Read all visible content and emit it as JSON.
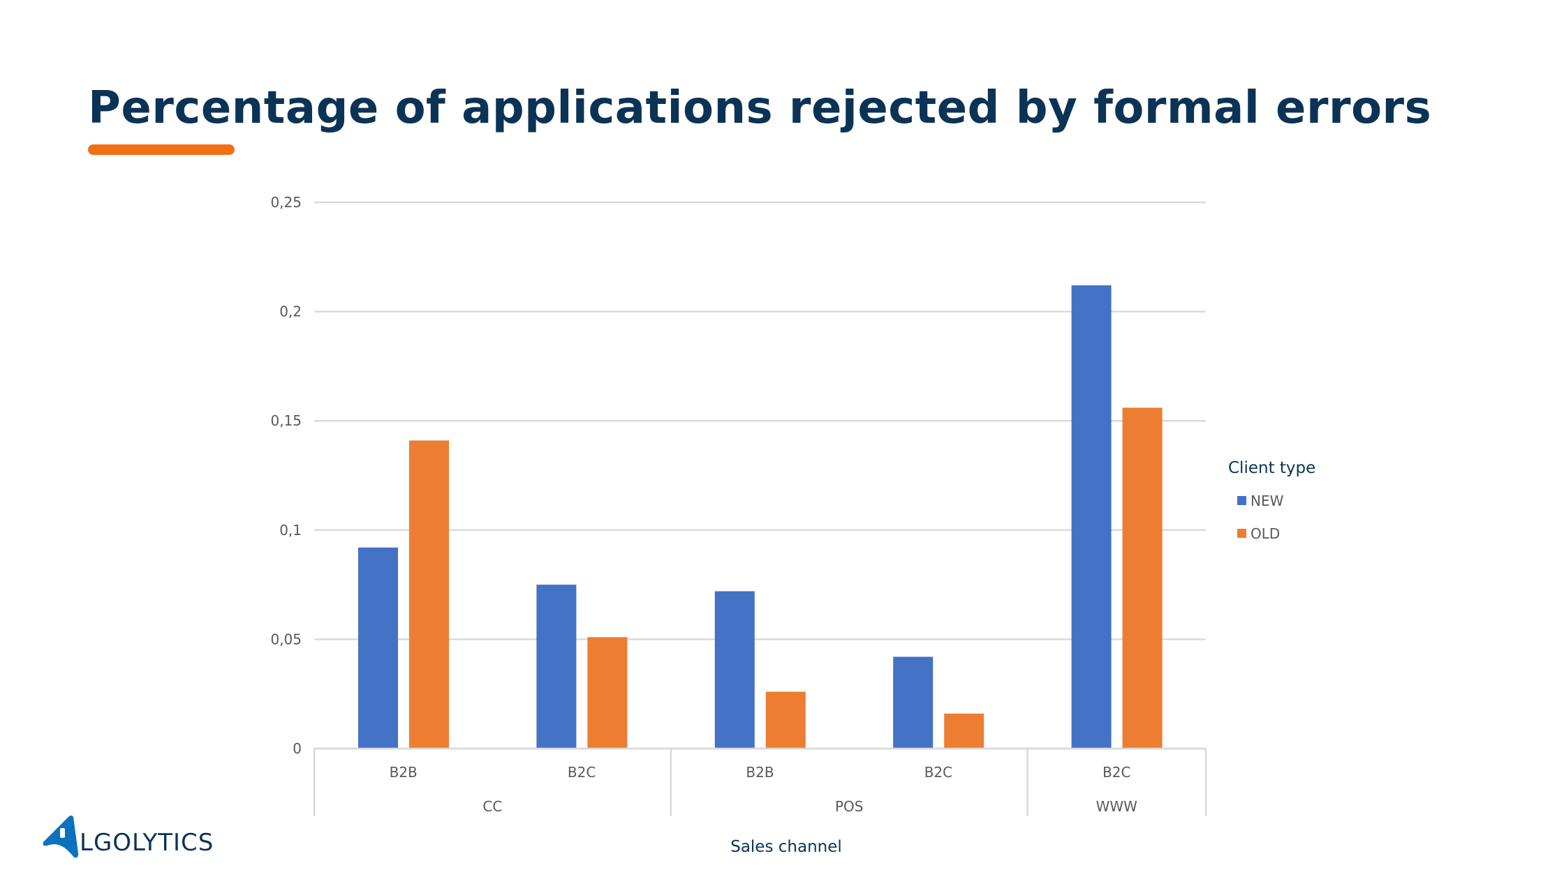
{
  "title": "Percentage of applications rejected by formal errors",
  "colors": {
    "title": "#0b3356",
    "accent": "#f26f14",
    "NEW": "#4472c4",
    "OLD": "#ed7d31"
  },
  "logo": {
    "text": "ALGOLYTICS"
  },
  "chart_data": {
    "type": "bar",
    "categories": [
      "B2B",
      "B2C",
      "B2B",
      "B2C",
      "B2C"
    ],
    "groups": [
      {
        "label": "CC",
        "span": 2
      },
      {
        "label": "POS",
        "span": 2
      },
      {
        "label": "WWW",
        "span": 1
      }
    ],
    "series": [
      {
        "name": "NEW",
        "values": [
          0.092,
          0.075,
          0.072,
          0.042,
          0.212
        ]
      },
      {
        "name": "OLD",
        "values": [
          0.141,
          0.051,
          0.026,
          0.016,
          0.156
        ]
      }
    ],
    "yticks": [
      "0",
      "0,05",
      "0,1",
      "0,15",
      "0,2",
      "0,25"
    ],
    "ylim": [
      0,
      0.25
    ],
    "xlabel": "Sales channel",
    "ylabel": "",
    "legend_title": "Client type",
    "legend_position": "right",
    "grid": true
  }
}
